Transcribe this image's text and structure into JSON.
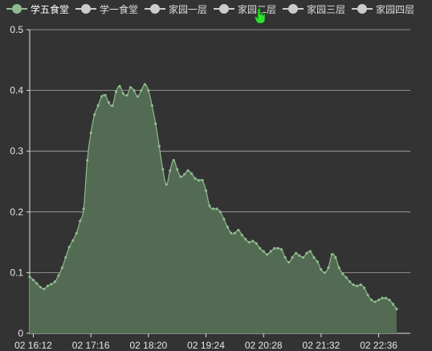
{
  "legend": {
    "items": [
      {
        "label": "学五食堂",
        "active": true
      },
      {
        "label": "学一食堂",
        "active": false
      },
      {
        "label": "家园一层",
        "active": false
      },
      {
        "label": "家园二层",
        "active": false
      },
      {
        "label": "家园三层",
        "active": false
      },
      {
        "label": "家园四层",
        "active": false
      }
    ]
  },
  "colors": {
    "background": "#333333",
    "series_line": "#8fbc8f",
    "series_fill": "#526b52",
    "inactive": "#cccccc",
    "axis": "#dddddd",
    "grid": "#aaaaaa"
  },
  "chart_data": {
    "type": "area",
    "title": "",
    "xlabel": "",
    "ylabel": "",
    "ylim": [
      0,
      0.5
    ],
    "yticks": [
      "0",
      "0.1",
      "0.2",
      "0.3",
      "0.4",
      "0.5"
    ],
    "xticks": [
      "02 16:12",
      "02 17:16",
      "02 18:20",
      "02 19:24",
      "02 20:28",
      "02 21:32",
      "02 22:36"
    ],
    "grid": true,
    "legend_position": "top",
    "series": [
      {
        "name": "学五食堂",
        "x_start": "02 16:08",
        "x_interval_minutes": 4,
        "values": [
          0.093,
          0.088,
          0.082,
          0.076,
          0.073,
          0.078,
          0.081,
          0.085,
          0.095,
          0.108,
          0.125,
          0.142,
          0.153,
          0.165,
          0.185,
          0.205,
          0.285,
          0.33,
          0.36,
          0.375,
          0.39,
          0.392,
          0.38,
          0.375,
          0.398,
          0.407,
          0.395,
          0.392,
          0.405,
          0.4,
          0.39,
          0.4,
          0.41,
          0.4,
          0.375,
          0.345,
          0.308,
          0.27,
          0.245,
          0.268,
          0.285,
          0.27,
          0.258,
          0.262,
          0.268,
          0.263,
          0.255,
          0.252,
          0.252,
          0.235,
          0.21,
          0.205,
          0.205,
          0.2,
          0.188,
          0.175,
          0.165,
          0.165,
          0.17,
          0.162,
          0.155,
          0.15,
          0.152,
          0.148,
          0.14,
          0.135,
          0.13,
          0.135,
          0.14,
          0.14,
          0.138,
          0.125,
          0.117,
          0.125,
          0.132,
          0.128,
          0.125,
          0.132,
          0.135,
          0.125,
          0.118,
          0.105,
          0.1,
          0.108,
          0.13,
          0.125,
          0.108,
          0.098,
          0.092,
          0.085,
          0.08,
          0.078,
          0.08,
          0.075,
          0.063,
          0.055,
          0.052,
          0.055,
          0.058,
          0.058,
          0.055,
          0.048,
          0.04
        ]
      }
    ]
  }
}
